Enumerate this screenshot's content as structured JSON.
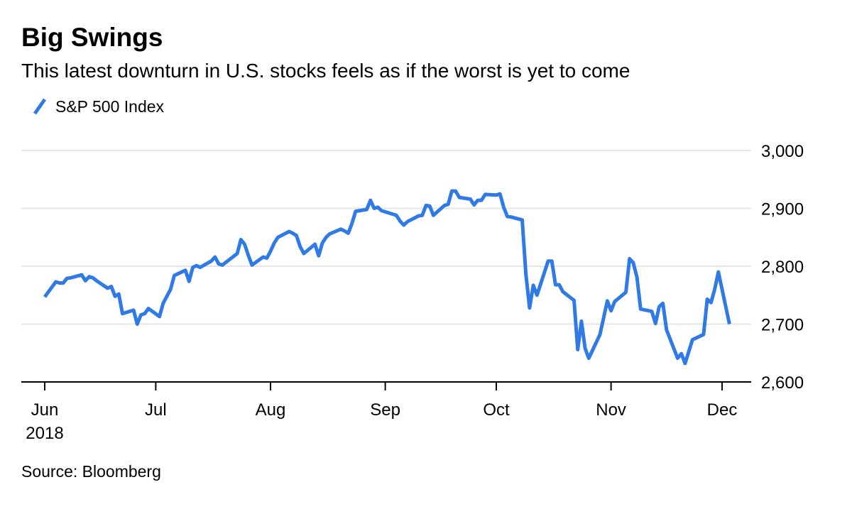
{
  "title": "Big Swings",
  "subtitle": "This latest downturn in U.S. stocks feels as if the worst is yet to come",
  "source": "Source: Bloomberg",
  "colors": {
    "series": "#2f7ae5",
    "grid": "#e6e6e6",
    "axis": "#000000"
  },
  "chart_data": {
    "type": "line",
    "title": "Big Swings",
    "subtitle": "This latest downturn in U.S. stocks feels as if the worst is yet to come",
    "xlabel": "",
    "ylabel": "",
    "ylim": [
      2600,
      3000
    ],
    "yticks": [
      2600,
      2700,
      2800,
      2900,
      3000
    ],
    "ytick_labels": [
      "2,600",
      "2,700",
      "2,800",
      "2,900",
      "3,000"
    ],
    "xticks": [
      {
        "date": "2018-06-01",
        "label": "Jun",
        "label2": "2018"
      },
      {
        "date": "2018-07-01",
        "label": "Jul"
      },
      {
        "date": "2018-08-01",
        "label": "Aug"
      },
      {
        "date": "2018-09-01",
        "label": "Sep"
      },
      {
        "date": "2018-10-01",
        "label": "Oct"
      },
      {
        "date": "2018-11-01",
        "label": "Nov"
      },
      {
        "date": "2018-12-01",
        "label": "Dec"
      }
    ],
    "xlim": [
      "2018-06-01",
      "2018-12-04"
    ],
    "grid": true,
    "legend_position": "top-left",
    "series": [
      {
        "name": "S&P 500 Index",
        "points": [
          [
            "2018-06-01",
            2747
          ],
          [
            "2018-06-04",
            2773
          ],
          [
            "2018-06-05",
            2771
          ],
          [
            "2018-06-06",
            2771
          ],
          [
            "2018-06-07",
            2779
          ],
          [
            "2018-06-08",
            2780
          ],
          [
            "2018-06-11",
            2785
          ],
          [
            "2018-06-12",
            2775
          ],
          [
            "2018-06-13",
            2782
          ],
          [
            "2018-06-14",
            2780
          ],
          [
            "2018-06-15",
            2775
          ],
          [
            "2018-06-18",
            2762
          ],
          [
            "2018-06-19",
            2765
          ],
          [
            "2018-06-20",
            2748
          ],
          [
            "2018-06-21",
            2752
          ],
          [
            "2018-06-22",
            2718
          ],
          [
            "2018-06-25",
            2724
          ],
          [
            "2018-06-26",
            2700
          ],
          [
            "2018-06-27",
            2716
          ],
          [
            "2018-06-28",
            2718
          ],
          [
            "2018-06-29",
            2727
          ],
          [
            "2018-07-02",
            2713
          ],
          [
            "2018-07-03",
            2736
          ],
          [
            "2018-07-05",
            2760
          ],
          [
            "2018-07-06",
            2784
          ],
          [
            "2018-07-09",
            2793
          ],
          [
            "2018-07-10",
            2774
          ],
          [
            "2018-07-11",
            2798
          ],
          [
            "2018-07-12",
            2801
          ],
          [
            "2018-07-13",
            2798
          ],
          [
            "2018-07-16",
            2809
          ],
          [
            "2018-07-17",
            2816
          ],
          [
            "2018-07-18",
            2804
          ],
          [
            "2018-07-19",
            2802
          ],
          [
            "2018-07-20",
            2807
          ],
          [
            "2018-07-23",
            2822
          ],
          [
            "2018-07-24",
            2846
          ],
          [
            "2018-07-25",
            2838
          ],
          [
            "2018-07-26",
            2819
          ],
          [
            "2018-07-27",
            2802
          ],
          [
            "2018-07-30",
            2816
          ],
          [
            "2018-07-31",
            2814
          ],
          [
            "2018-08-01",
            2826
          ],
          [
            "2018-08-02",
            2840
          ],
          [
            "2018-08-03",
            2850
          ],
          [
            "2018-08-06",
            2860
          ],
          [
            "2018-08-07",
            2857
          ],
          [
            "2018-08-08",
            2853
          ],
          [
            "2018-08-09",
            2834
          ],
          [
            "2018-08-10",
            2822
          ],
          [
            "2018-08-13",
            2838
          ],
          [
            "2018-08-14",
            2818
          ],
          [
            "2018-08-15",
            2840
          ],
          [
            "2018-08-16",
            2850
          ],
          [
            "2018-08-17",
            2856
          ],
          [
            "2018-08-20",
            2864
          ],
          [
            "2018-08-21",
            2861
          ],
          [
            "2018-08-22",
            2857
          ],
          [
            "2018-08-23",
            2874
          ],
          [
            "2018-08-24",
            2895
          ],
          [
            "2018-08-27",
            2898
          ],
          [
            "2018-08-28",
            2914
          ],
          [
            "2018-08-29",
            2900
          ],
          [
            "2018-08-30",
            2902
          ],
          [
            "2018-08-31",
            2896
          ],
          [
            "2018-09-04",
            2888
          ],
          [
            "2018-09-05",
            2878
          ],
          [
            "2018-09-06",
            2871
          ],
          [
            "2018-09-07",
            2877
          ],
          [
            "2018-09-10",
            2887
          ],
          [
            "2018-09-11",
            2888
          ],
          [
            "2018-09-12",
            2905
          ],
          [
            "2018-09-13",
            2904
          ],
          [
            "2018-09-14",
            2888
          ],
          [
            "2018-09-17",
            2905
          ],
          [
            "2018-09-18",
            2907
          ],
          [
            "2018-09-19",
            2930
          ],
          [
            "2018-09-20",
            2930
          ],
          [
            "2018-09-21",
            2919
          ],
          [
            "2018-09-24",
            2916
          ],
          [
            "2018-09-25",
            2906
          ],
          [
            "2018-09-26",
            2914
          ],
          [
            "2018-09-27",
            2914
          ],
          [
            "2018-09-28",
            2924
          ],
          [
            "2018-10-01",
            2923
          ],
          [
            "2018-10-02",
            2925
          ],
          [
            "2018-10-03",
            2902
          ],
          [
            "2018-10-04",
            2886
          ],
          [
            "2018-10-05",
            2885
          ],
          [
            "2018-10-08",
            2880
          ],
          [
            "2018-10-09",
            2786
          ],
          [
            "2018-10-10",
            2728
          ],
          [
            "2018-10-11",
            2767
          ],
          [
            "2018-10-12",
            2750
          ],
          [
            "2018-10-15",
            2809
          ],
          [
            "2018-10-16",
            2809
          ],
          [
            "2018-10-17",
            2768
          ],
          [
            "2018-10-18",
            2768
          ],
          [
            "2018-10-19",
            2756
          ],
          [
            "2018-10-22",
            2741
          ],
          [
            "2018-10-23",
            2656
          ],
          [
            "2018-10-24",
            2705
          ],
          [
            "2018-10-25",
            2658
          ],
          [
            "2018-10-26",
            2641
          ],
          [
            "2018-10-29",
            2682
          ],
          [
            "2018-10-30",
            2711
          ],
          [
            "2018-10-31",
            2740
          ],
          [
            "2018-11-01",
            2723
          ],
          [
            "2018-11-02",
            2739
          ],
          [
            "2018-11-05",
            2755
          ],
          [
            "2018-11-06",
            2813
          ],
          [
            "2018-11-07",
            2806
          ],
          [
            "2018-11-08",
            2781
          ],
          [
            "2018-11-09",
            2726
          ],
          [
            "2018-11-12",
            2722
          ],
          [
            "2018-11-13",
            2701
          ],
          [
            "2018-11-14",
            2730
          ],
          [
            "2018-11-15",
            2736
          ],
          [
            "2018-11-16",
            2690
          ],
          [
            "2018-11-19",
            2641
          ],
          [
            "2018-11-20",
            2649
          ],
          [
            "2018-11-21",
            2632
          ],
          [
            "2018-11-23",
            2673
          ],
          [
            "2018-11-26",
            2682
          ],
          [
            "2018-11-27",
            2743
          ],
          [
            "2018-11-28",
            2737
          ],
          [
            "2018-11-29",
            2760
          ],
          [
            "2018-11-30",
            2790
          ],
          [
            "2018-12-03",
            2700
          ]
        ]
      }
    ]
  }
}
